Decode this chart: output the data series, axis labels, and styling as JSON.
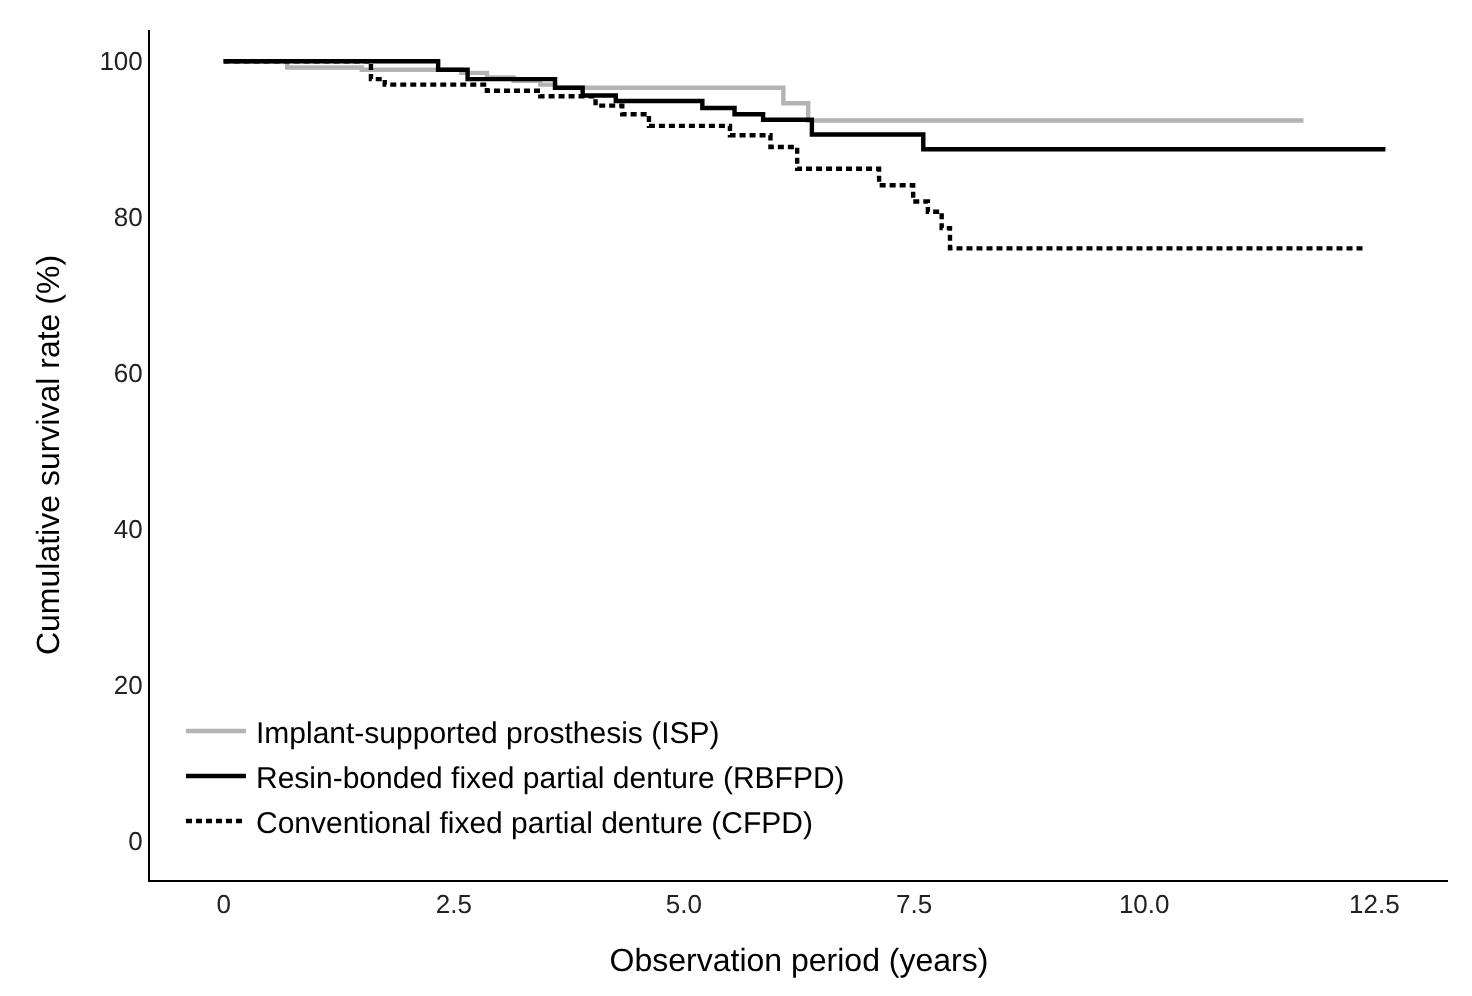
{
  "chart_data": {
    "type": "step",
    "xlabel": "Observation period (years)",
    "ylabel": "Cumulative survival rate (%)",
    "xlim": [
      -0.8,
      13.3
    ],
    "xticks": [
      0,
      {
        "value": 2.5,
        "label": "2.5"
      },
      {
        "value": 5,
        "label": "5.0"
      },
      {
        "value": 7.5,
        "label": "7.5"
      },
      {
        "value": 10,
        "label": "10.0"
      },
      {
        "value": 12.5,
        "label": "12.5"
      }
    ],
    "ylim": [
      -5,
      104
    ],
    "yticks": [
      0,
      20,
      40,
      60,
      80,
      100
    ],
    "legend": "bottom left",
    "marker": "none",
    "series": [
      {
        "name": "Implant-supported prosthesis (ISP)",
        "color": "#b3b3b3",
        "line_style": "solid",
        "x": [
          0,
          0.69,
          1.5,
          2.58,
          2.86,
          3.15,
          3.44,
          3.6,
          6.08,
          6.35,
          11.73
        ],
        "values": [
          100,
          99.2,
          98.9,
          98.5,
          97.9,
          97.5,
          97.0,
          96.6,
          94.6,
          92.4,
          92.4
        ]
      },
      {
        "name": "Resin-bonded fixed partial denture (RBFPD)",
        "color": "#000000",
        "line_style": "solid",
        "x": [
          0,
          2.33,
          2.65,
          3.6,
          3.9,
          4.26,
          5.2,
          5.55,
          5.86,
          6.39,
          7.6,
          12.62
        ],
        "values": [
          100,
          98.9,
          97.7,
          96.6,
          95.6,
          94.9,
          94.0,
          93.2,
          92.5,
          90.6,
          88.7,
          88.7
        ]
      },
      {
        "name": "Conventional fixed partial denture (CFPD)",
        "color": "#000000",
        "line_style": "dashed",
        "x": [
          0,
          1.6,
          1.75,
          2.86,
          3.44,
          4.04,
          4.33,
          4.62,
          5.5,
          5.94,
          6.23,
          7.12,
          7.49,
          7.65,
          7.8,
          7.89,
          12.38
        ],
        "values": [
          100,
          97.7,
          97.0,
          96.2,
          95.5,
          94.3,
          93.2,
          91.7,
          90.5,
          89.0,
          86.2,
          84.1,
          82.0,
          80.7,
          78.6,
          76.0,
          76.0
        ]
      }
    ]
  }
}
